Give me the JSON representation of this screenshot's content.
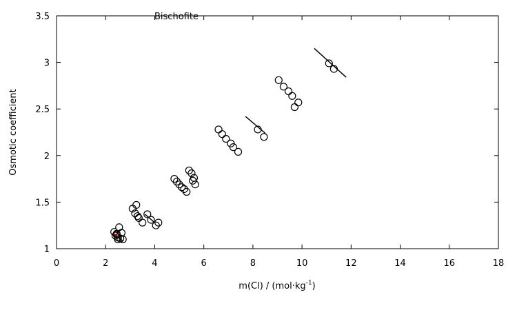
{
  "chart_data": {
    "type": "scatter",
    "title": "",
    "xlabel": "m(Cl) / (mol·kg",
    "xlabel_sup": "-1",
    "xlabel_end": ")",
    "ylabel": "Osmotic coefficient",
    "xlim": [
      0,
      18
    ],
    "ylim": [
      1,
      3.5
    ],
    "xticks": [
      0,
      2,
      4,
      6,
      8,
      10,
      12,
      14,
      16,
      18
    ],
    "yticks": [
      1,
      1.5,
      2,
      2.5,
      3,
      3.5
    ],
    "xtick_labels": [
      "0",
      "2",
      "4",
      "6",
      "8",
      "10",
      "12",
      "14",
      "16",
      "18"
    ],
    "ytick_labels": [
      "1",
      "1.5",
      "2",
      "2.5",
      "3",
      "3.5"
    ],
    "grid": false,
    "legend": {
      "position": "top-left",
      "entries": [
        "Bischofite"
      ]
    },
    "series": [
      {
        "name": "Bischofite",
        "marker": "open-circle",
        "points": [
          [
            2.35,
            1.18
          ],
          [
            2.45,
            1.16
          ],
          [
            2.55,
            1.23
          ],
          [
            2.4,
            1.14
          ],
          [
            2.5,
            1.12
          ],
          [
            2.65,
            1.17
          ],
          [
            2.5,
            1.1
          ],
          [
            2.6,
            1.11
          ],
          [
            2.7,
            1.1
          ],
          [
            2.45,
            1.15
          ],
          [
            3.1,
            1.43
          ],
          [
            3.25,
            1.47
          ],
          [
            3.2,
            1.38
          ],
          [
            3.3,
            1.35
          ],
          [
            3.35,
            1.33
          ],
          [
            3.5,
            1.28
          ],
          [
            3.7,
            1.37
          ],
          [
            3.85,
            1.31
          ],
          [
            4.05,
            1.25
          ],
          [
            4.15,
            1.28
          ],
          [
            4.8,
            1.75
          ],
          [
            4.9,
            1.72
          ],
          [
            5.0,
            1.69
          ],
          [
            5.1,
            1.66
          ],
          [
            5.2,
            1.64
          ],
          [
            5.3,
            1.61
          ],
          [
            5.4,
            1.84
          ],
          [
            5.5,
            1.81
          ],
          [
            5.6,
            1.76
          ],
          [
            5.55,
            1.73
          ],
          [
            5.65,
            1.69
          ],
          [
            6.6,
            2.28
          ],
          [
            6.75,
            2.23
          ],
          [
            6.9,
            2.18
          ],
          [
            7.1,
            2.13
          ],
          [
            7.2,
            2.09
          ],
          [
            7.4,
            2.04
          ],
          [
            8.2,
            2.28
          ],
          [
            8.45,
            2.2
          ],
          [
            9.05,
            2.81
          ],
          [
            9.25,
            2.74
          ],
          [
            9.45,
            2.69
          ],
          [
            9.6,
            2.64
          ],
          [
            9.85,
            2.57
          ],
          [
            9.7,
            2.52
          ],
          [
            11.1,
            2.99
          ],
          [
            11.3,
            2.93
          ]
        ]
      }
    ],
    "fit_lines": [
      [
        [
          2.3,
          1.16
        ],
        [
          2.72,
          1.08
        ]
      ],
      [
        [
          3.6,
          1.37
        ],
        [
          4.0,
          1.28
        ]
      ],
      [
        [
          7.7,
          2.42
        ],
        [
          8.5,
          2.24
        ]
      ],
      [
        [
          10.5,
          3.15
        ],
        [
          11.8,
          2.84
        ]
      ]
    ],
    "red_line": [
      [
        2.35,
        1.16
      ],
      [
        2.5,
        1.13
      ]
    ]
  }
}
